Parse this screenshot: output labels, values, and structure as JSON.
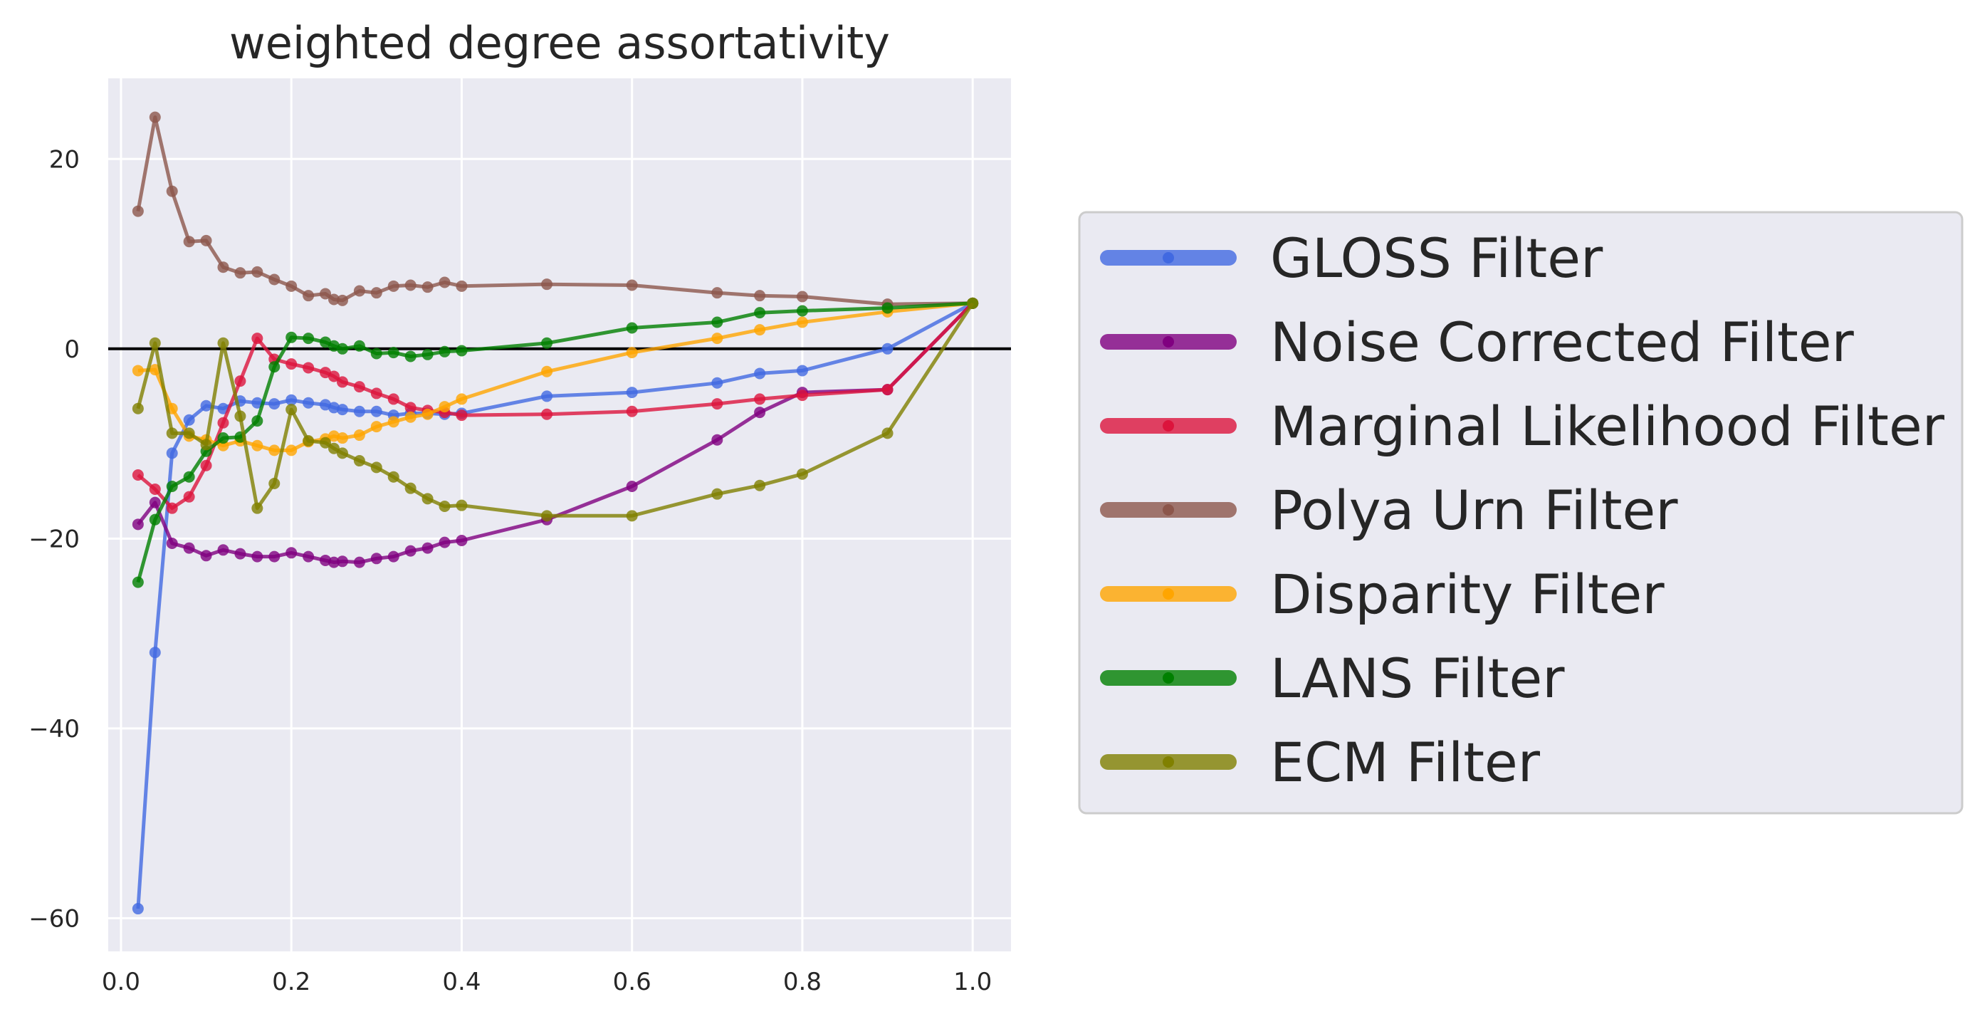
{
  "chart_data": {
    "type": "line",
    "title": "weighted degree assortativity",
    "xlabel": "",
    "ylabel": "",
    "xlim": [
      -0.015,
      1.045
    ],
    "ylim": [
      -63.5,
      28.5
    ],
    "xticks": [
      0.0,
      0.2,
      0.4,
      0.6,
      0.8,
      1.0
    ],
    "xtick_labels": [
      "0.0",
      "0.2",
      "0.4",
      "0.6",
      "0.8",
      "1.0"
    ],
    "yticks": [
      -60,
      -40,
      -20,
      0,
      20
    ],
    "ytick_labels": [
      "−60",
      "−40",
      "−20",
      "0",
      "20"
    ],
    "hline": 0,
    "grid": true,
    "legend_position": "outside-right",
    "series": [
      {
        "name": "GLOSS Filter",
        "color": "#4169e1",
        "x": [
          0.02,
          0.04,
          0.06,
          0.08,
          0.1,
          0.12,
          0.14,
          0.16,
          0.18,
          0.2,
          0.22,
          0.24,
          0.25,
          0.26,
          0.28,
          0.3,
          0.32,
          0.34,
          0.36,
          0.38,
          0.4,
          0.5,
          0.6,
          0.7,
          0.75,
          0.8,
          0.9,
          1.0
        ],
        "y": [
          -59.0,
          -32.0,
          -11.0,
          -7.5,
          -6.0,
          -6.3,
          -5.5,
          -5.7,
          -5.8,
          -5.4,
          -5.7,
          -5.9,
          -6.2,
          -6.4,
          -6.6,
          -6.6,
          -7.0,
          -6.8,
          -6.8,
          -6.9,
          -6.8,
          -5.0,
          -4.6,
          -3.6,
          -2.6,
          -2.3,
          0.0,
          4.8
        ]
      },
      {
        "name": "Noise Corrected Filter",
        "color": "#800080",
        "x": [
          0.02,
          0.04,
          0.06,
          0.08,
          0.1,
          0.12,
          0.14,
          0.16,
          0.18,
          0.2,
          0.22,
          0.24,
          0.25,
          0.26,
          0.28,
          0.3,
          0.32,
          0.34,
          0.36,
          0.38,
          0.4,
          0.5,
          0.6,
          0.7,
          0.75,
          0.8,
          0.9,
          1.0
        ],
        "y": [
          -18.5,
          -16.2,
          -20.5,
          -21.0,
          -21.8,
          -21.2,
          -21.6,
          -21.9,
          -21.9,
          -21.5,
          -21.9,
          -22.3,
          -22.5,
          -22.4,
          -22.5,
          -22.1,
          -21.9,
          -21.3,
          -21.0,
          -20.4,
          -20.2,
          -18.0,
          -14.5,
          -9.6,
          -6.7,
          -4.6,
          -4.3,
          4.8
        ]
      },
      {
        "name": "Marginal Likelihood Filter",
        "color": "#dc143c",
        "x": [
          0.02,
          0.04,
          0.06,
          0.08,
          0.1,
          0.12,
          0.14,
          0.16,
          0.18,
          0.2,
          0.22,
          0.24,
          0.25,
          0.26,
          0.28,
          0.3,
          0.32,
          0.34,
          0.36,
          0.38,
          0.4,
          0.5,
          0.6,
          0.7,
          0.75,
          0.8,
          0.9,
          1.0
        ],
        "y": [
          -13.3,
          -14.8,
          -16.8,
          -15.6,
          -12.3,
          -7.8,
          -3.4,
          1.1,
          -1.1,
          -1.6,
          -2.0,
          -2.5,
          -2.9,
          -3.5,
          -4.0,
          -4.7,
          -5.3,
          -6.2,
          -6.5,
          -6.7,
          -7.0,
          -6.9,
          -6.6,
          -5.8,
          -5.3,
          -4.9,
          -4.3,
          4.8
        ]
      },
      {
        "name": "Polya Urn Filter",
        "color": "#8c564b",
        "x": [
          0.02,
          0.04,
          0.06,
          0.08,
          0.1,
          0.12,
          0.14,
          0.16,
          0.18,
          0.2,
          0.22,
          0.24,
          0.25,
          0.26,
          0.28,
          0.3,
          0.32,
          0.34,
          0.36,
          0.38,
          0.4,
          0.5,
          0.6,
          0.7,
          0.75,
          0.8,
          0.9,
          1.0
        ],
        "y": [
          14.5,
          24.4,
          16.6,
          11.3,
          11.4,
          8.6,
          8.0,
          8.1,
          7.3,
          6.6,
          5.6,
          5.8,
          5.2,
          5.1,
          6.1,
          5.9,
          6.6,
          6.7,
          6.5,
          7.0,
          6.6,
          6.8,
          6.7,
          5.9,
          5.6,
          5.5,
          4.7,
          4.8
        ]
      },
      {
        "name": "Disparity Filter",
        "color": "#ffa500",
        "x": [
          0.02,
          0.04,
          0.06,
          0.08,
          0.1,
          0.12,
          0.14,
          0.16,
          0.18,
          0.2,
          0.22,
          0.24,
          0.25,
          0.26,
          0.28,
          0.3,
          0.32,
          0.34,
          0.36,
          0.38,
          0.4,
          0.5,
          0.6,
          0.7,
          0.75,
          0.8,
          0.9,
          1.0
        ],
        "y": [
          -2.3,
          -2.2,
          -6.3,
          -9.2,
          -9.6,
          -10.2,
          -9.7,
          -10.2,
          -10.7,
          -10.7,
          -9.8,
          -9.5,
          -9.2,
          -9.4,
          -9.1,
          -8.2,
          -7.7,
          -7.2,
          -6.9,
          -6.1,
          -5.3,
          -2.4,
          -0.4,
          1.1,
          2.0,
          2.8,
          3.9,
          4.8
        ]
      },
      {
        "name": "LANS Filter",
        "color": "#008000",
        "x": [
          0.02,
          0.04,
          0.06,
          0.08,
          0.1,
          0.12,
          0.14,
          0.16,
          0.18,
          0.2,
          0.22,
          0.24,
          0.25,
          0.26,
          0.28,
          0.3,
          0.32,
          0.34,
          0.36,
          0.38,
          0.4,
          0.5,
          0.6,
          0.7,
          0.75,
          0.8,
          0.9,
          1.0
        ],
        "y": [
          -24.6,
          -18.0,
          -14.5,
          -13.5,
          -10.8,
          -9.4,
          -9.3,
          -7.6,
          -1.9,
          1.2,
          1.1,
          0.7,
          0.3,
          0.0,
          0.3,
          -0.5,
          -0.4,
          -0.8,
          -0.6,
          -0.3,
          -0.2,
          0.6,
          2.2,
          2.8,
          3.8,
          4.0,
          4.3,
          4.8
        ]
      },
      {
        "name": "ECM Filter",
        "color": "#808000",
        "x": [
          0.02,
          0.04,
          0.06,
          0.08,
          0.1,
          0.12,
          0.14,
          0.16,
          0.18,
          0.2,
          0.22,
          0.24,
          0.25,
          0.26,
          0.28,
          0.3,
          0.32,
          0.34,
          0.36,
          0.38,
          0.4,
          0.5,
          0.6,
          0.7,
          0.75,
          0.8,
          0.9,
          1.0
        ],
        "y": [
          -6.3,
          0.6,
          -8.9,
          -8.9,
          -10.1,
          0.6,
          -7.1,
          -16.8,
          -14.2,
          -6.4,
          -9.7,
          -9.9,
          -10.5,
          -11.0,
          -11.8,
          -12.5,
          -13.5,
          -14.7,
          -15.8,
          -16.6,
          -16.5,
          -17.6,
          -17.6,
          -15.3,
          -14.4,
          -13.2,
          -8.9,
          4.8
        ]
      }
    ]
  }
}
